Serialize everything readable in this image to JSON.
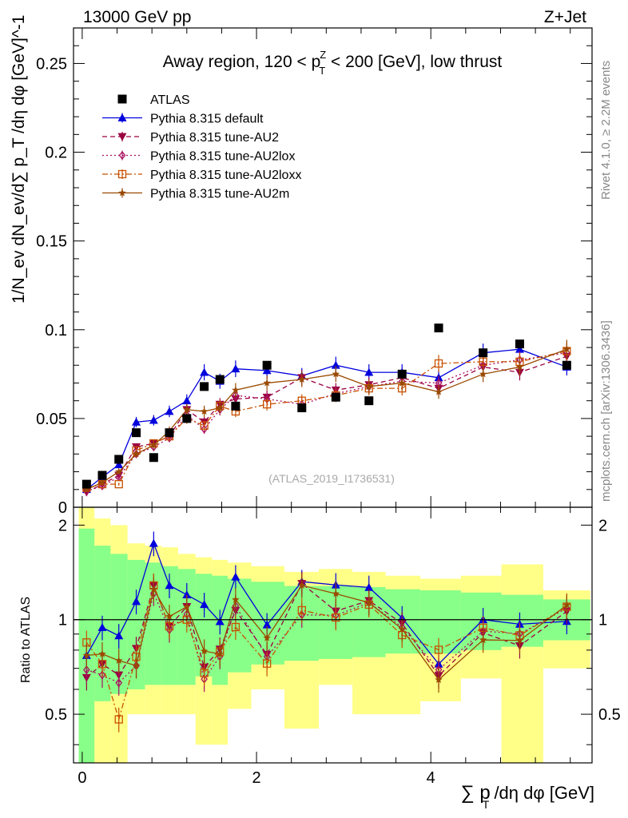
{
  "header": {
    "energy": "13000 GeV pp",
    "process": "Z+Jet",
    "title_prefix": "Away region, 120 < p",
    "title_sup": "Z",
    "title_sub": "T",
    "title_suffix": " < 200 [GeV], low thrust"
  },
  "side": {
    "rivet": "Rivet 4.1.0, ≥ 2.2M events",
    "mcplots": "mcplots.cern.ch [arXiv:1306.3436]"
  },
  "watermark": "(ATLAS_2019_I1736531)",
  "axes": {
    "main_ylabel": "1/N",
    "ratio_ylabel": "Ratio to ATLAS",
    "xlabel": "∑ p",
    "xlabel_sub": "T",
    "xlabel_suffix": " /dη dφ [GeV]",
    "ylabel_full": "1/N_ev dN_ev/d∑ p_T /dη dφ [GeV]^-1"
  },
  "colors": {
    "atlas": "#000000",
    "default": "#0000dd",
    "au2": "#9a0040",
    "au2lox": "#aa1060",
    "au2loxx": "#c85000",
    "au2m": "#9a4a00",
    "band_outer": "#ffff88",
    "band_inner": "#88ff88"
  },
  "chart_data": {
    "type": "line",
    "x": [
      0.05,
      0.23,
      0.42,
      0.62,
      0.82,
      1.0,
      1.2,
      1.4,
      1.58,
      1.76,
      2.12,
      2.52,
      2.91,
      3.29,
      3.67,
      4.09,
      4.6,
      5.02,
      5.56
    ],
    "xlim": [
      -0.1,
      5.85
    ],
    "ylim": [
      0,
      0.27
    ],
    "yticks": [
      0.05,
      0.1,
      0.15,
      0.2,
      0.25
    ],
    "ytick_labels": [
      "0.05",
      "0.1",
      "0.15",
      "0.2",
      "0.25"
    ],
    "xticks": [
      0,
      2,
      4
    ],
    "xtick_labels": [
      "0",
      "2",
      "4"
    ],
    "ratio_ylim": [
      0.35,
      2.28
    ],
    "ratio_yticks": [
      0.5,
      1,
      2
    ],
    "ratio_ytick_labels": [
      "0.5",
      "1",
      "2"
    ],
    "data": {
      "name": "ATLAS",
      "values": [
        0.013,
        0.018,
        0.027,
        0.042,
        0.028,
        0.042,
        0.05,
        0.068,
        0.072,
        0.057,
        0.08,
        0.056,
        0.062,
        0.06,
        0.075,
        0.101,
        0.087,
        0.092,
        0.08
      ]
    },
    "series": [
      {
        "name": "Pythia 8.315 default",
        "key": "default",
        "style": "solid",
        "marker": "triangle-up",
        "values": [
          0.01,
          0.017,
          0.024,
          0.048,
          0.049,
          0.054,
          0.06,
          0.076,
          0.071,
          0.078,
          0.077,
          0.074,
          0.08,
          0.076,
          0.076,
          0.073,
          0.087,
          0.089,
          0.079
        ]
      },
      {
        "name": "Pythia 8.315 tune-AU2",
        "key": "au2",
        "style": "dash",
        "marker": "triangle-down",
        "values": [
          0.0085,
          0.013,
          0.018,
          0.034,
          0.036,
          0.04,
          0.055,
          0.048,
          0.058,
          0.061,
          0.062,
          0.073,
          0.066,
          0.069,
          0.073,
          0.067,
          0.079,
          0.076,
          0.085
        ]
      },
      {
        "name": "Pythia 8.315 tune-AU2lox",
        "key": "au2lox",
        "style": "dot",
        "marker": "diamond",
        "values": [
          0.009,
          0.012,
          0.017,
          0.03,
          0.034,
          0.039,
          0.052,
          0.044,
          0.055,
          0.063,
          0.061,
          0.058,
          0.064,
          0.068,
          0.071,
          0.07,
          0.08,
          0.083,
          0.087
        ]
      },
      {
        "name": "Pythia 8.315 tune-AU2loxx",
        "key": "au2loxx",
        "style": "dashdot",
        "marker": "square-open",
        "values": [
          0.011,
          0.013,
          0.013,
          0.032,
          0.036,
          0.04,
          0.05,
          0.046,
          0.057,
          0.054,
          0.058,
          0.06,
          0.063,
          0.067,
          0.067,
          0.081,
          0.082,
          0.082,
          0.088
        ]
      },
      {
        "name": "Pythia 8.315 tune-AU2m",
        "key": "au2m",
        "style": "solid",
        "marker": "star",
        "values": [
          0.01,
          0.014,
          0.02,
          0.03,
          0.035,
          0.043,
          0.055,
          0.054,
          0.056,
          0.066,
          0.07,
          0.072,
          0.075,
          0.068,
          0.07,
          0.065,
          0.075,
          0.079,
          0.089
        ]
      }
    ],
    "ratio_band_inner": {
      "lo": [
        0.35,
        0.55,
        0.58,
        0.6,
        0.62,
        0.62,
        0.62,
        0.66,
        0.62,
        0.68,
        0.72,
        0.74,
        0.75,
        0.76,
        0.78,
        0.78,
        0.8,
        0.82,
        0.86
      ],
      "hi": [
        1.95,
        1.72,
        1.62,
        1.55,
        1.52,
        1.48,
        1.45,
        1.4,
        1.38,
        1.35,
        1.32,
        1.28,
        1.28,
        1.27,
        1.25,
        1.24,
        1.22,
        1.2,
        1.16
      ]
    },
    "ratio_band_outer": {
      "lo": [
        0.35,
        0.35,
        0.35,
        0.5,
        0.5,
        0.5,
        0.5,
        0.4,
        0.4,
        0.52,
        0.6,
        0.45,
        0.62,
        0.5,
        0.5,
        0.55,
        0.65,
        0.35,
        0.7
      ],
      "hi": [
        2.28,
        2.1,
        2.0,
        1.75,
        1.72,
        1.7,
        1.62,
        1.58,
        1.55,
        1.52,
        1.48,
        1.42,
        1.45,
        1.42,
        1.38,
        1.35,
        1.38,
        1.5,
        1.24
      ]
    }
  }
}
